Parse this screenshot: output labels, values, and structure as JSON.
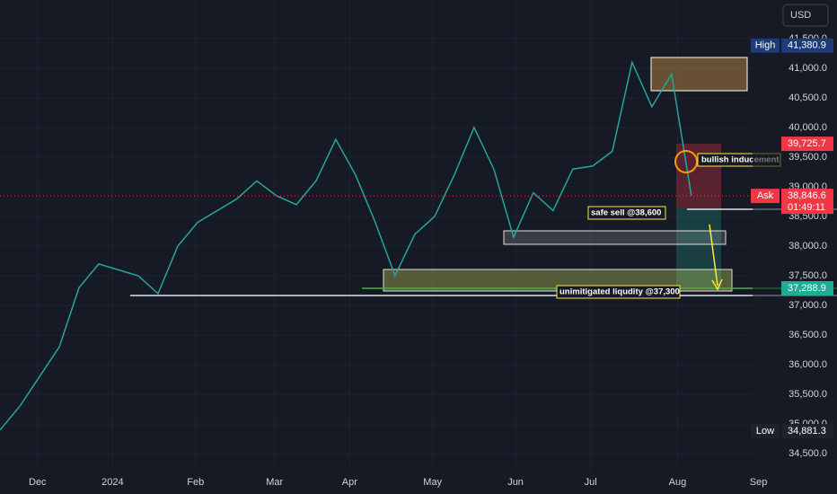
{
  "chart_data": {
    "type": "line",
    "currency": "USD",
    "categories": [
      null,
      null,
      null,
      null,
      null,
      null,
      null,
      null,
      null,
      null,
      null,
      null,
      null,
      null,
      null,
      null,
      null,
      null,
      null,
      null,
      null,
      null,
      null,
      null,
      null,
      null,
      null,
      null,
      null,
      null,
      null,
      null,
      null,
      null,
      null,
      null
    ],
    "series": [
      {
        "color": "#26a69a",
        "values": [
          34900,
          35300,
          35800,
          36300,
          37300,
          37700,
          37600,
          37500,
          37200,
          38000,
          38400,
          38600,
          38800,
          39100,
          38850,
          38700,
          39100,
          39800,
          39200,
          38400,
          37500,
          38200,
          38500,
          39200,
          40000,
          39300,
          38150,
          38900,
          38600,
          39300,
          39350,
          39600,
          41100,
          40350,
          40900,
          38850
        ]
      }
    ],
    "xlim": [
      0,
      38.1
    ],
    "xticks": [
      {
        "value": 1.9,
        "label": "Dec"
      },
      {
        "value": 5.7,
        "label": "2024"
      },
      {
        "value": 9.9,
        "label": "Feb"
      },
      {
        "value": 13.9,
        "label": "Mar"
      },
      {
        "value": 17.7,
        "label": "Apr"
      },
      {
        "value": 21.9,
        "label": "May"
      },
      {
        "value": 26.1,
        "label": "Jun"
      },
      {
        "value": 29.9,
        "label": "Jul"
      },
      {
        "value": 34.3,
        "label": "Aug"
      },
      {
        "value": 38.4,
        "label": "Sep"
      }
    ],
    "ylim": [
      34200,
      42150
    ],
    "yticks": [
      {
        "value": 34500,
        "label": "34,500.0"
      },
      {
        "value": 35000,
        "label": "35,000.0"
      },
      {
        "value": 35500,
        "label": "35,500.0"
      },
      {
        "value": 36000,
        "label": "36,000.0"
      },
      {
        "value": 36500,
        "label": "36,500.0"
      },
      {
        "value": 37000,
        "label": "37,000.0"
      },
      {
        "value": 37500,
        "label": "37,500.0"
      },
      {
        "value": 38000,
        "label": "38,000.0"
      },
      {
        "value": 38500,
        "label": "38,500.0"
      },
      {
        "value": 39000,
        "label": "39,000.0"
      },
      {
        "value": 39500,
        "label": "39,500.0"
      },
      {
        "value": 40000,
        "label": "40,000.0"
      },
      {
        "value": 40500,
        "label": "40,500.0"
      },
      {
        "value": 41000,
        "label": "41,000.0"
      },
      {
        "value": 41500,
        "label": "41,500.0"
      }
    ],
    "grid": true,
    "price_labels": [
      {
        "name": "High",
        "value": 41380.9,
        "label": "41,380.9",
        "color": "#1e3a78"
      },
      {
        "value": 39725.7,
        "label": "39,725.7",
        "color": "#f23645"
      },
      {
        "name": "Ask",
        "value": 38846.6,
        "label": "38,846.6",
        "countdown": "01:49:11",
        "color": "#f23645"
      },
      {
        "value": 37288.9,
        "label": "37,288.9",
        "color": "#22ab94"
      },
      {
        "name": "Low",
        "value": 34881.3,
        "label": "34,881.3",
        "color": "#1e222d"
      }
    ],
    "annotations": [
      "bullish inducement",
      "safe sell @38,600",
      "unimitigated liqudity @37,300"
    ]
  }
}
